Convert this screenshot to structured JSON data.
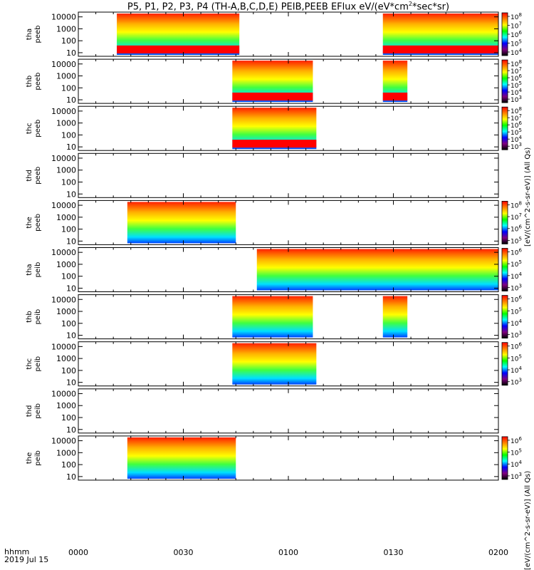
{
  "title_parts": {
    "main": "P5, P1, P2, P3, P4 (TH-A,B,C,D,E) PEIB,PEEB EFlux eV/(eV*cm",
    "sup": "2",
    "tail": "*sec*sr)"
  },
  "x_axis": {
    "label_line1": "hhmm",
    "label_line2": "2019 Jul 15",
    "ticks": [
      "0000",
      "0030",
      "0100",
      "0130",
      "0200"
    ],
    "range_minutes": [
      0,
      120
    ]
  },
  "colorbar_titles": {
    "peeb": "[eV/(cm^2-s-sr-eV)] (All Qs)",
    "peib": "[eV/(cm^2-s-sr-eV)] (All Qs)"
  },
  "chart_data": {
    "type": "heatmap",
    "y_scale": "log",
    "y_ticks": [
      "10",
      "100",
      "1000",
      "10000"
    ],
    "y_range_eV": [
      5,
      25000
    ],
    "colormap": [
      "#ff0000",
      "#ff8000",
      "#ffff00",
      "#00ff00",
      "#00ffff",
      "#0000ff",
      "#800080",
      "#000000"
    ],
    "panels": [
      {
        "label1": "tha",
        "label2": "peeb",
        "colorbar_ticks": [
          "10^8",
          "10^7",
          "10^6",
          "10^5",
          "10^4"
        ],
        "intervals_min": [
          [
            11,
            46
          ],
          [
            87,
            120
          ]
        ],
        "low_band": true
      },
      {
        "label1": "thb",
        "label2": "peeb",
        "colorbar_ticks": [
          "10^8",
          "10^7",
          "10^6",
          "10^5",
          "10^4",
          "10^3"
        ],
        "intervals_min": [
          [
            44,
            67
          ],
          [
            87,
            94
          ]
        ],
        "low_band": true
      },
      {
        "label1": "thc",
        "label2": "peeb",
        "colorbar_ticks": [
          "10^8",
          "10^7",
          "10^6",
          "10^5",
          "10^4",
          "10^3"
        ],
        "intervals_min": [
          [
            44,
            68
          ]
        ],
        "low_band": true
      },
      {
        "label1": "thd",
        "label2": "peeb",
        "colorbar_ticks": [],
        "intervals_min": [],
        "low_band": false
      },
      {
        "label1": "the",
        "label2": "peeb",
        "colorbar_ticks": [
          "10^8",
          "10^7",
          "10^6",
          "10^5"
        ],
        "intervals_min": [
          [
            14,
            45
          ]
        ],
        "low_band": false
      },
      {
        "label1": "tha",
        "label2": "peib",
        "colorbar_ticks": [
          "10^6",
          "10^5",
          "10^4",
          "10^3"
        ],
        "intervals_min": [
          [
            51,
            120
          ]
        ],
        "low_band": false
      },
      {
        "label1": "thb",
        "label2": "peib",
        "colorbar_ticks": [
          "10^6",
          "10^5",
          "10^4",
          "10^3"
        ],
        "intervals_min": [
          [
            44,
            67
          ],
          [
            87,
            94
          ]
        ],
        "low_band": false
      },
      {
        "label1": "thc",
        "label2": "peib",
        "colorbar_ticks": [
          "10^6",
          "10^5",
          "10^4",
          "10^3"
        ],
        "intervals_min": [
          [
            44,
            68
          ]
        ],
        "low_band": false
      },
      {
        "label1": "thd",
        "label2": "peib",
        "colorbar_ticks": [],
        "intervals_min": [],
        "low_band": false
      },
      {
        "label1": "the",
        "label2": "peib",
        "colorbar_ticks": [
          "10^6",
          "10^5",
          "10^4",
          "10^3"
        ],
        "intervals_min": [
          [
            14,
            45
          ]
        ],
        "low_band": false
      }
    ]
  }
}
